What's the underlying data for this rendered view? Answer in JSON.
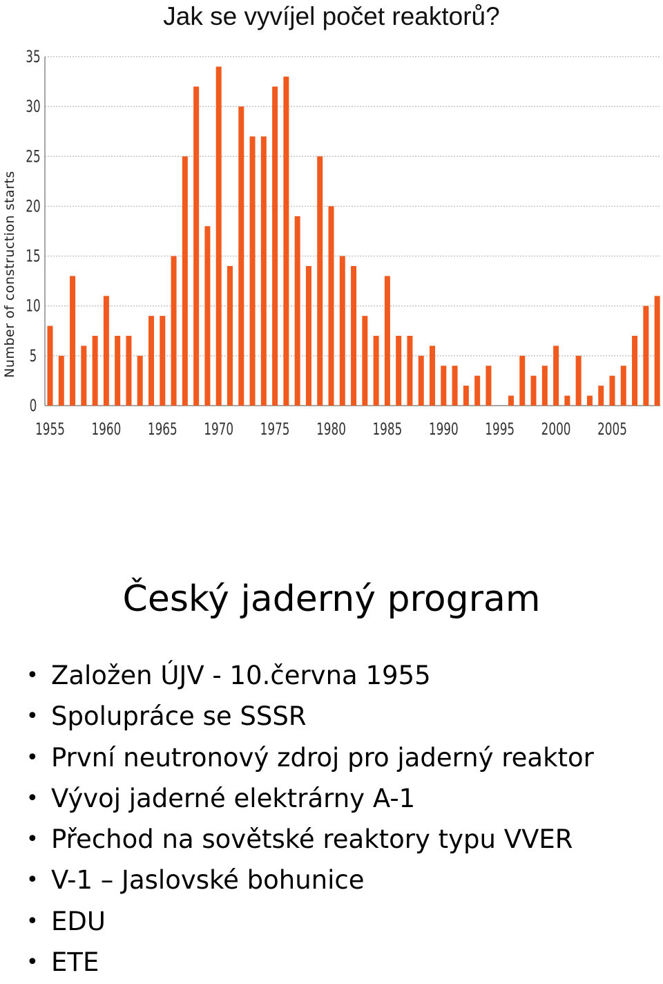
{
  "header": {
    "title": "Jak se vyvíjel počet reaktorů?"
  },
  "chart_data": {
    "type": "bar",
    "title": "",
    "xlabel": "",
    "ylabel": "Number of construction starts",
    "ylim": [
      0,
      35
    ],
    "yticks": [
      0,
      5,
      10,
      15,
      20,
      25,
      30,
      35
    ],
    "xtick_labels": [
      "1955",
      "1960",
      "1965",
      "1970",
      "1975",
      "1980",
      "1985",
      "1990",
      "1995",
      "2000",
      "2005"
    ],
    "grid": true,
    "bar_color": "#f05a1f",
    "categories": [
      1955,
      1956,
      1957,
      1958,
      1959,
      1960,
      1961,
      1962,
      1963,
      1964,
      1965,
      1966,
      1967,
      1968,
      1969,
      1970,
      1971,
      1972,
      1973,
      1974,
      1975,
      1976,
      1977,
      1978,
      1979,
      1980,
      1981,
      1982,
      1983,
      1984,
      1985,
      1986,
      1987,
      1988,
      1989,
      1990,
      1991,
      1992,
      1993,
      1994,
      1995,
      1996,
      1997,
      1998,
      1999,
      2000,
      2001,
      2002,
      2003,
      2004,
      2005,
      2006,
      2007,
      2008,
      2009
    ],
    "values": [
      8,
      5,
      13,
      6,
      7,
      11,
      7,
      7,
      5,
      9,
      9,
      15,
      25,
      32,
      18,
      34,
      14,
      30,
      27,
      27,
      32,
      33,
      19,
      14,
      25,
      20,
      15,
      14,
      9,
      7,
      13,
      7,
      7,
      5,
      6,
      4,
      4,
      2,
      3,
      4,
      0,
      1,
      5,
      3,
      4,
      6,
      1,
      5,
      1,
      2,
      3,
      4,
      7,
      10,
      11
    ]
  },
  "slide": {
    "title": "Český jaderný program",
    "bullet_symbol": "•",
    "bullets": [
      "Založen ÚJV - 10.června 1955",
      "Spolupráce se SSSR",
      "První neutronový zdroj pro jaderný reaktor",
      "Vývoj jaderné elektrárny A-1",
      "Přechod na sovětské reaktory typu VVER",
      "V-1 – Jaslovské bohunice",
      "EDU",
      "ETE"
    ]
  }
}
